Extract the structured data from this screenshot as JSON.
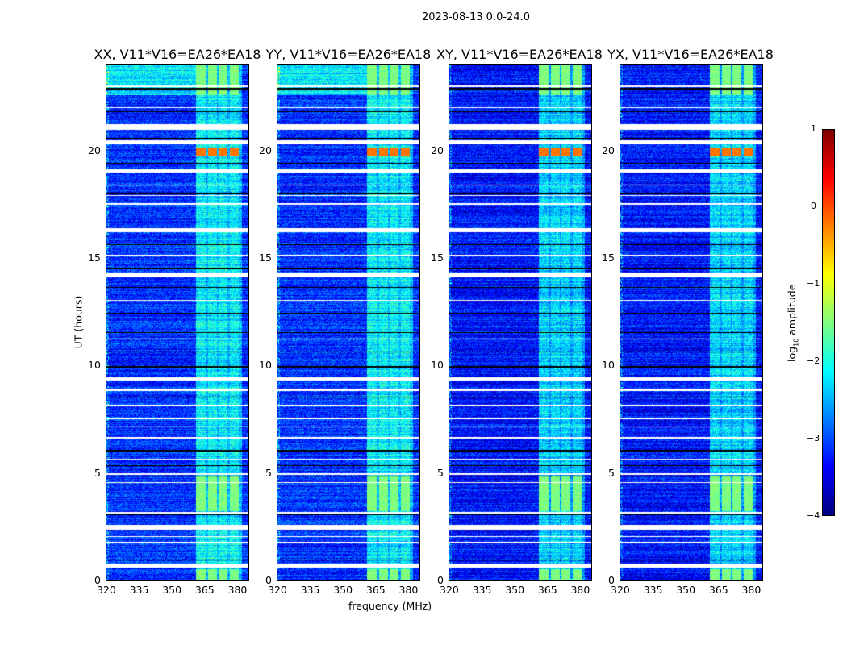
{
  "chart_data": {
    "type": "heatmap",
    "title": "2023-08-13 0.0-24.0",
    "xlabel": "frequency (MHz)",
    "ylabel": "UT (hours)",
    "xlim": [
      320,
      385
    ],
    "ylim": [
      0,
      24
    ],
    "xticks": [
      320,
      335,
      350,
      365,
      380
    ],
    "yticks": [
      0,
      5,
      10,
      15,
      20
    ],
    "panels": [
      {
        "title": "XX, V11*V16=EA26*EA18",
        "base": -3.15,
        "lowfreq_top_boost": 1.0
      },
      {
        "title": "YY, V11*V16=EA26*EA18",
        "base": -3.15,
        "lowfreq_top_boost": 1.0
      },
      {
        "title": "XY, V11*V16=EA26*EA18",
        "base": -3.3,
        "lowfreq_top_boost": 0.0
      },
      {
        "title": "YX, V11*V16=EA26*EA18",
        "base": -3.3,
        "lowfreq_top_boost": 0.0
      }
    ],
    "rfi_band_mhz": [
      361,
      382
    ],
    "rfi_subbands_mhz": [
      [
        361,
        365.5
      ],
      [
        366.5,
        370.5
      ],
      [
        371.5,
        375.5
      ],
      [
        376.5,
        380.5
      ]
    ],
    "rfi_strong_hours": [
      [
        3.2,
        4.8
      ],
      [
        0.0,
        0.5
      ],
      [
        22.6,
        24.0
      ]
    ],
    "rfi_peak_hours": [
      [
        19.75,
        20.15
      ]
    ],
    "flagged_hours": [
      [
        21.0,
        21.25
      ],
      [
        20.3,
        20.5
      ],
      [
        16.2,
        16.4
      ],
      [
        14.1,
        14.35
      ],
      [
        9.3,
        9.45
      ],
      [
        8.8,
        8.9
      ],
      [
        2.35,
        2.55
      ],
      [
        0.55,
        0.75
      ],
      [
        23.0,
        23.05
      ],
      [
        22.0,
        22.05
      ],
      [
        19.0,
        19.15
      ],
      [
        18.4,
        18.45
      ],
      [
        17.9,
        17.95
      ],
      [
        17.5,
        17.55
      ],
      [
        15.1,
        15.15
      ],
      [
        13.0,
        13.05
      ],
      [
        11.2,
        11.25
      ],
      [
        8.1,
        8.15
      ],
      [
        7.5,
        7.55
      ],
      [
        7.1,
        7.15
      ],
      [
        6.6,
        6.65
      ],
      [
        5.6,
        5.65
      ],
      [
        4.9,
        4.95
      ],
      [
        4.5,
        4.55
      ],
      [
        3.1,
        3.15
      ],
      [
        2.0,
        2.05
      ],
      [
        1.7,
        1.75
      ]
    ],
    "dropout_hours": [
      [
        22.85,
        22.95
      ],
      [
        21.8,
        21.85
      ],
      [
        20.55,
        20.6
      ],
      [
        19.4,
        19.45
      ],
      [
        18.0,
        18.05
      ],
      [
        15.6,
        15.65
      ],
      [
        14.5,
        14.55
      ],
      [
        13.6,
        13.65
      ],
      [
        12.4,
        12.45
      ],
      [
        11.5,
        11.55
      ],
      [
        10.6,
        10.65
      ],
      [
        9.9,
        9.95
      ],
      [
        8.5,
        8.55
      ],
      [
        6.0,
        6.05
      ],
      [
        5.3,
        5.35
      ],
      [
        4.8,
        4.85
      ],
      [
        3.0,
        3.05
      ],
      [
        0.9,
        0.95
      ]
    ],
    "colorbar": {
      "label": "log10 amplitude",
      "range": [
        -4,
        1
      ],
      "ticks": [
        1,
        0,
        -1,
        -2,
        -3,
        -4
      ],
      "tick_labels": [
        "1",
        "0",
        "−1",
        "−2",
        "−3",
        "−4"
      ],
      "colormap": "jet"
    }
  }
}
